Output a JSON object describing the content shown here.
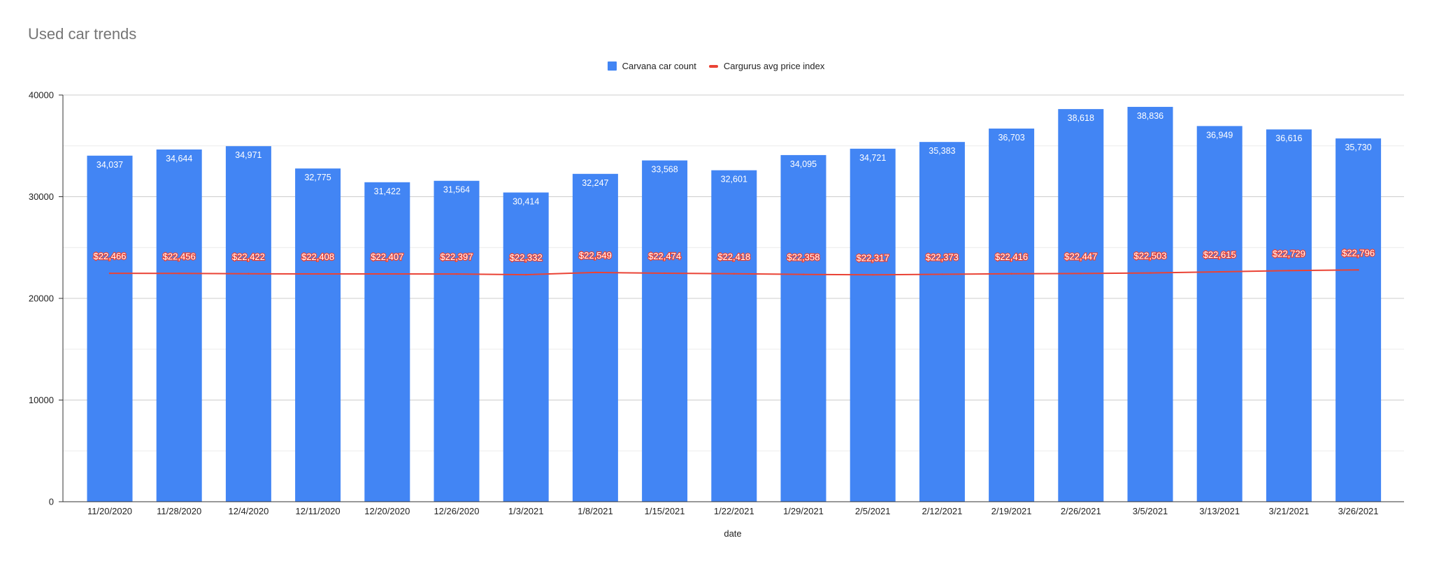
{
  "chart_data": {
    "type": "bar",
    "title": "Used car trends",
    "xlabel": "date",
    "ylabel": "",
    "ylim": [
      0,
      40000
    ],
    "yticks": [
      "0",
      "10000",
      "20000",
      "30000",
      "40000"
    ],
    "grid": true,
    "legend_position": "top-center",
    "categories": [
      "11/20/2020",
      "11/28/2020",
      "12/4/2020",
      "12/11/2020",
      "12/20/2020",
      "12/26/2020",
      "1/3/2021",
      "1/8/2021",
      "1/15/2021",
      "1/22/2021",
      "1/29/2021",
      "2/5/2021",
      "2/12/2021",
      "2/19/2021",
      "2/26/2021",
      "3/5/2021",
      "3/13/2021",
      "3/21/2021",
      "3/26/2021"
    ],
    "series": [
      {
        "name": "Carvana car count",
        "type": "bar",
        "color": "#4285f4",
        "values": [
          34037,
          34644,
          34971,
          32775,
          31422,
          31564,
          30414,
          32247,
          33568,
          32601,
          34095,
          34721,
          35383,
          36703,
          38618,
          38836,
          36949,
          36616,
          35730
        ],
        "labels": [
          "34,037",
          "34,644",
          "34,971",
          "32,775",
          "31,422",
          "31,564",
          "30,414",
          "32,247",
          "33,568",
          "32,601",
          "34,095",
          "34,721",
          "35,383",
          "36,703",
          "38,618",
          "38,836",
          "36,949",
          "36,616",
          "35,730"
        ]
      },
      {
        "name": "Cargurus avg price index",
        "type": "line",
        "color": "#ea4335",
        "values": [
          22466,
          22456,
          22422,
          22408,
          22407,
          22397,
          22332,
          22549,
          22474,
          22418,
          22358,
          22317,
          22373,
          22416,
          22447,
          22503,
          22615,
          22729,
          22796
        ],
        "labels": [
          "$22,466",
          "$22,456",
          "$22,422",
          "$22,408",
          "$22,407",
          "$22,397",
          "$22,332",
          "$22,549",
          "$22,474",
          "$22,418",
          "$22,358",
          "$22,317",
          "$22,373",
          "$22,416",
          "$22,447",
          "$22,503",
          "$22,615",
          "$22,729",
          "$22,796"
        ]
      }
    ]
  }
}
